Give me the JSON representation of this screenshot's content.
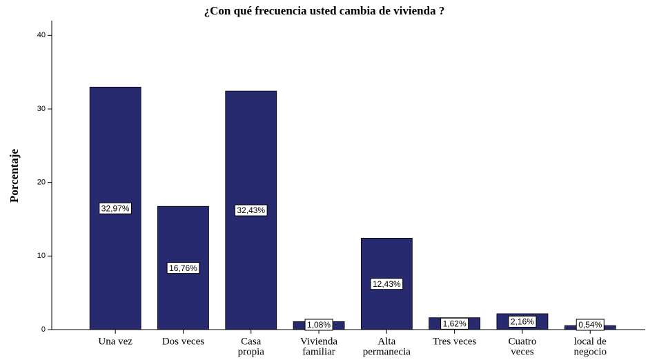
{
  "chart_data": {
    "type": "bar",
    "title": "¿Con qué frecuencia usted cambia de vivienda ?",
    "y_label": "Porcentaje",
    "categories": [
      [
        "Una vez"
      ],
      [
        "Dos veces"
      ],
      [
        "Casa",
        "propia"
      ],
      [
        "Vivienda",
        "familiar"
      ],
      [
        "Alta",
        "permanecia"
      ],
      [
        "Tres veces"
      ],
      [
        "Cuatro",
        "veces"
      ],
      [
        "local de",
        "negocio"
      ]
    ],
    "values": [
      32.97,
      16.76,
      32.43,
      1.08,
      12.43,
      1.62,
      2.16,
      0.54
    ],
    "value_labels": [
      "32,97%",
      "16,76%",
      "32,43%",
      "1,08%",
      "12,43%",
      "1,62%",
      "2,16%",
      "0,54%"
    ],
    "color": "#272a6f",
    "ylim": [
      0,
      42
    ],
    "yticks": [
      0,
      10,
      20,
      30,
      40
    ]
  }
}
